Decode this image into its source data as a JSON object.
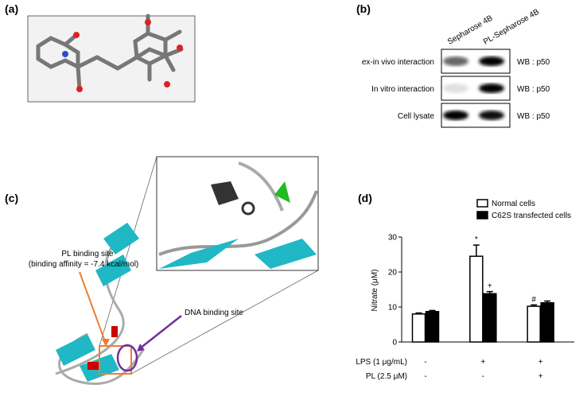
{
  "panel_labels": [
    "(a)",
    "(b)",
    "(c)",
    "(d)"
  ],
  "blot": {
    "lanes": [
      "Sepharose 4B",
      "PL-Sepharose 4B"
    ],
    "rows": [
      {
        "label": "ex-in vivo  interaction",
        "antibody": "WB : p50"
      },
      {
        "label": "In vitro interaction",
        "antibody": "WB : p50"
      },
      {
        "label": "Cell lysate",
        "antibody": "WB : p50"
      }
    ]
  },
  "structure": {
    "annotations": [
      "PL binding site",
      "(binding affinity = -7.4 kcal/mol)",
      "DNA binding site"
    ]
  },
  "chart_data": {
    "type": "bar",
    "y_label": "Nitrate (μM)",
    "series": [
      {
        "name": "Normal cells",
        "color": "#ffffff",
        "values": [
          8,
          24.5,
          10.2
        ],
        "errors": [
          0.3,
          3.2,
          0.4
        ],
        "significance": [
          null,
          "*",
          "#"
        ]
      },
      {
        "name": "C62S transfected cells",
        "color": "#000000",
        "values": [
          8.7,
          13.8,
          11.2
        ],
        "errors": [
          0.3,
          0.6,
          0.5
        ],
        "significance": [
          null,
          "+",
          null
        ]
      }
    ],
    "ylim": [
      0,
      30
    ],
    "yticks": [
      0,
      10,
      20,
      30
    ],
    "conditions": [
      {
        "label": "LPS (1 μg/mL)",
        "values": [
          "-",
          "+",
          "+"
        ]
      },
      {
        "label": "PL (2.5 μM)",
        "values": [
          "-",
          "-",
          "+"
        ]
      }
    ]
  }
}
